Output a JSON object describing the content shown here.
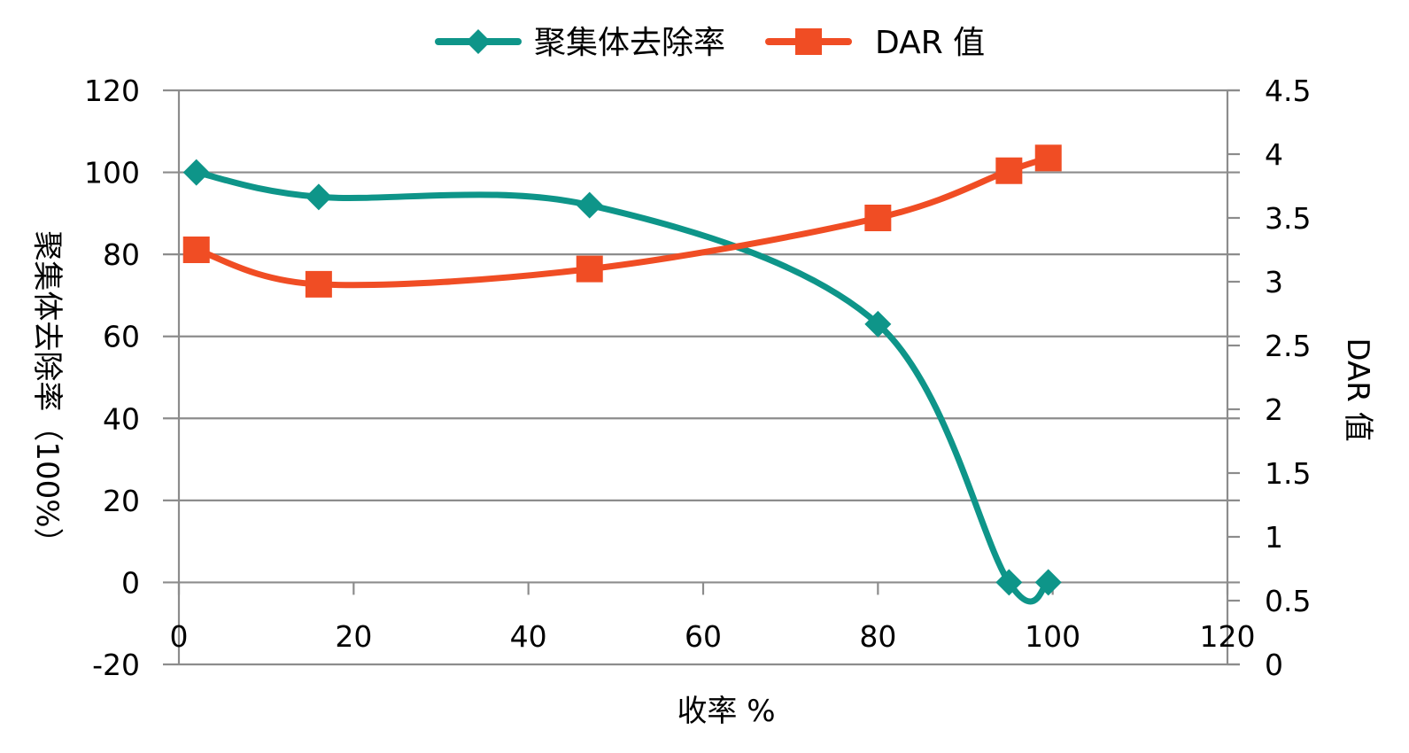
{
  "chart_data": {
    "type": "line",
    "smooth": true,
    "series": [
      {
        "name": "聚集体去除率",
        "axis": "left",
        "color": "#0e9589",
        "marker": "diamond",
        "points": [
          [
            2,
            100
          ],
          [
            16,
            94
          ],
          [
            47,
            92
          ],
          [
            80,
            63
          ],
          [
            95,
            0
          ],
          [
            99.5,
            0
          ]
        ]
      },
      {
        "name": "DAR 值",
        "axis": "right",
        "color": "#f04d24",
        "marker": "square",
        "points": [
          [
            2,
            3.25
          ],
          [
            16,
            2.98
          ],
          [
            47,
            3.1
          ],
          [
            80,
            3.5
          ],
          [
            95,
            3.87
          ],
          [
            99.5,
            3.97
          ]
        ]
      }
    ],
    "xlabel": "收率 %",
    "ylabel_left": "聚集体去除率（100%）",
    "ylabel_right": "DAR 值",
    "xlim": [
      0,
      120
    ],
    "ylim_left": [
      -20,
      120
    ],
    "ylim_right": [
      0,
      4.5
    ],
    "xticks": [
      "0",
      "20",
      "40",
      "60",
      "80",
      "100",
      "120"
    ],
    "yticks_left": [
      "-20",
      "0",
      "20",
      "40",
      "60",
      "80",
      "100",
      "120"
    ],
    "yticks_right": [
      "0",
      "0.5",
      "1",
      "1.5",
      "2",
      "2.5",
      "3",
      "3.5",
      "4",
      "4.5"
    ],
    "grid": true,
    "legend": "top-center"
  }
}
